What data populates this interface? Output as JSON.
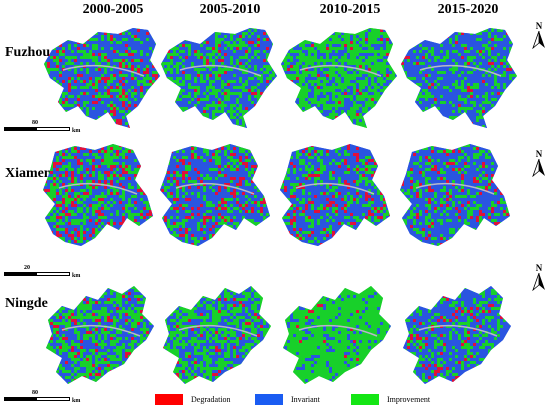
{
  "periods": [
    "2000-2005",
    "2005-2010",
    "2010-2015",
    "2015-2020"
  ],
  "cities": [
    {
      "name": "Fuzhou",
      "scale": "80",
      "unit": "km"
    },
    {
      "name": "Xiamen",
      "scale": "20",
      "unit": "km"
    },
    {
      "name": "Ningde",
      "scale": "80",
      "unit": "km"
    }
  ],
  "north_label": "N",
  "legend": [
    {
      "label": "Degradation",
      "color": "#ff0000"
    },
    {
      "label": "Invariant",
      "color": "#1a5cf2"
    },
    {
      "label": "Improvement",
      "color": "#14e614"
    }
  ],
  "map_colors": {
    "invariant": "#2a55e0",
    "improvement": "#18d02a",
    "degradation": "#e0103a",
    "water": "#b8b8c8"
  }
}
